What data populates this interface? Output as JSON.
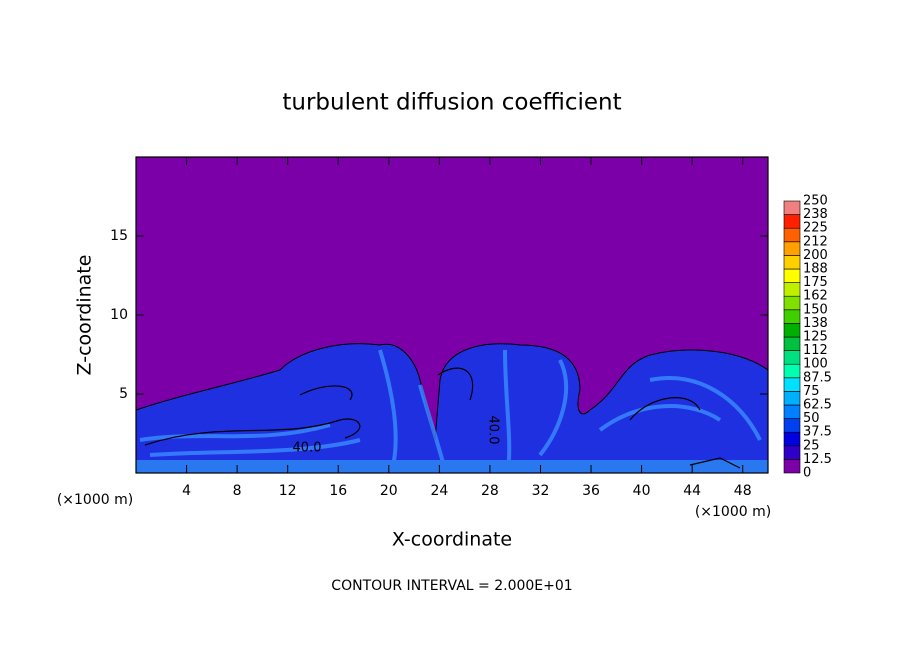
{
  "chart_data": {
    "type": "contour",
    "title": "turbulent diffusion coefficient",
    "x_label": "X-coordinate",
    "y_label": "Z-coordinate",
    "x_unit_left": "(×1000 m)",
    "x_unit_right": "(×1000 m)",
    "footnote": "CONTOUR INTERVAL = 2.000E+01",
    "contour_labels": [
      "40.0",
      "40.0"
    ],
    "xlim": [
      0,
      50
    ],
    "ylim": [
      0,
      20
    ],
    "xticks": [
      4,
      8,
      12,
      16,
      20,
      24,
      28,
      32,
      36,
      40,
      44,
      48
    ],
    "yticks": [
      5,
      10,
      15
    ],
    "colorbar": {
      "lim": [
        0,
        250
      ],
      "ticks": [
        0,
        12.5,
        25,
        37.5,
        50,
        62.5,
        75,
        87.5,
        100,
        {
          "value": 112.5,
          "label": "112"
        },
        125,
        {
          "value": 137.5,
          "label": "138"
        },
        150,
        {
          "value": 162.5,
          "label": "162"
        },
        175,
        {
          "value": 187.5,
          "label": "188"
        },
        200,
        {
          "value": 212.5,
          "label": "212"
        },
        225,
        {
          "value": 237.5,
          "label": "238"
        },
        250
      ],
      "colors": [
        "#7b00a8",
        "#3000c8",
        "#0000e0",
        "#0040f0",
        "#0080ff",
        "#00b0ff",
        "#00e0ff",
        "#00ffb0",
        "#00e080",
        "#00c040",
        "#00b000",
        "#40d000",
        "#80e000",
        "#c0f000",
        "#ffff00",
        "#ffd000",
        "#ffa000",
        "#ff6000",
        "#ff2000",
        "#f08080"
      ]
    }
  }
}
